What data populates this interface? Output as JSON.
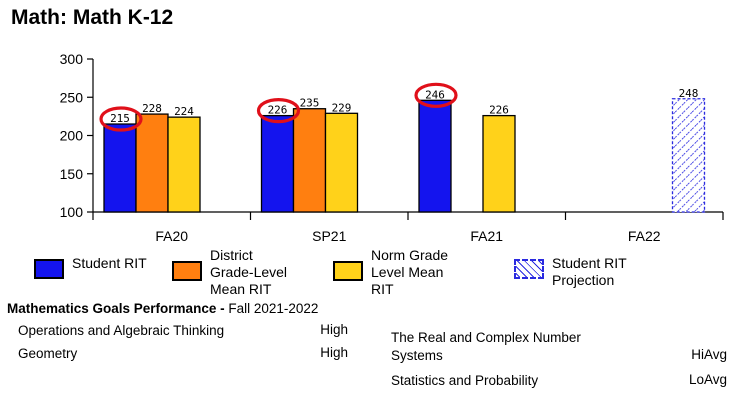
{
  "page_title": "Math: Math K-12",
  "colors": {
    "student_rit": "#1414ee",
    "district_mean": "#ff7f10",
    "norm_mean": "#ffd21a",
    "projection": "#2a2ae0",
    "highlight_circle": "#e0101a"
  },
  "chart_data": {
    "type": "bar",
    "categories": [
      "FA20",
      "SP21",
      "FA21",
      "FA22"
    ],
    "ylim": [
      100,
      300
    ],
    "yticks": [
      100,
      150,
      200,
      250,
      300
    ],
    "grid": false,
    "series": [
      {
        "name": "Student RIT",
        "color_key": "student_rit",
        "values": [
          215,
          226,
          246,
          null
        ]
      },
      {
        "name": "District Grade-Level Mean RIT",
        "color_key": "district_mean",
        "values": [
          228,
          235,
          null,
          null
        ]
      },
      {
        "name": "Norm Grade Level Mean RIT",
        "color_key": "norm_mean",
        "values": [
          224,
          229,
          226,
          null
        ]
      },
      {
        "name": "Student RIT Projection",
        "color_key": "projection",
        "values": [
          null,
          null,
          null,
          248
        ],
        "pattern": "hatched"
      }
    ],
    "highlighted": [
      "FA20 Student RIT",
      "SP21 Student RIT",
      "FA21 Student RIT"
    ],
    "legend_position": "bottom"
  },
  "legend": [
    {
      "label": "Student RIT",
      "color_key": "student_rit"
    },
    {
      "label": "District\nGrade-Level\nMean RIT",
      "color_key": "district_mean"
    },
    {
      "label": "Norm Grade\nLevel Mean\nRIT",
      "color_key": "norm_mean"
    },
    {
      "label": "Student RIT\nProjection",
      "color_key": "projection",
      "pattern": "hatched"
    }
  ],
  "goals": {
    "heading_bold": "Mathematics Goals Performance -",
    "heading_term": " Fall 2021-2022",
    "left": [
      {
        "name": "Operations and Algebraic Thinking",
        "level": "High"
      },
      {
        "name": "Geometry",
        "level": "High"
      }
    ],
    "right": [
      {
        "name": "The Real and Complex Number\nSystems",
        "level": "HiAvg"
      },
      {
        "name": "Statistics and Probability",
        "level": "LoAvg"
      }
    ]
  }
}
